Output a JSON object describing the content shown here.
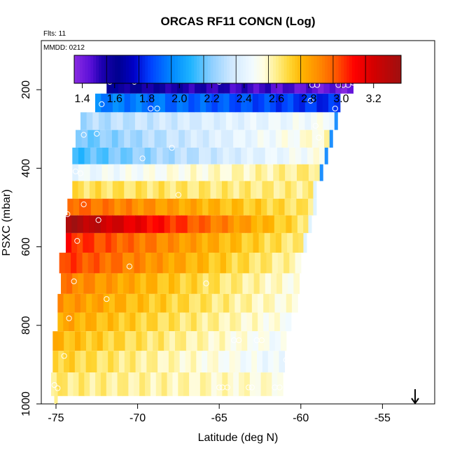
{
  "chart_data": {
    "type": "heatmap",
    "title": "ORCAS RF11 CONCN (Log)",
    "subtitle_flights": "Flts: 11",
    "subtitle_date": "MMDD: 0212",
    "xlabel": "Latitude (deg N)",
    "ylabel": "PSXC (mbar)",
    "xlim": [
      -75.9,
      -51.8
    ],
    "ylim": [
      1000,
      75
    ],
    "x_ticks": [
      -75,
      -70,
      -65,
      -60,
      -55
    ],
    "x_tick_labels": [
      "-75",
      "-70",
      "-65",
      "-60",
      "-55"
    ],
    "y_ticks": [
      200,
      400,
      600,
      800,
      1000
    ],
    "y_tick_labels": [
      "200",
      "400",
      "600",
      "800",
      "1000"
    ],
    "colorbar": {
      "range": [
        1.35,
        3.37
      ],
      "ticks": [
        1.4,
        1.6,
        1.8,
        2.0,
        2.2,
        2.4,
        2.6,
        2.8,
        3.0,
        3.2
      ],
      "tick_labels": [
        "1.4",
        "1.6",
        "1.8",
        "2.0",
        "2.2",
        "2.4",
        "2.6",
        "2.8",
        "3.0",
        "3.2"
      ],
      "divisions": [
        1.55,
        1.75,
        1.95,
        2.15,
        2.35,
        2.55,
        2.75,
        2.95,
        3.15
      ],
      "stops": [
        {
          "v": 1.35,
          "c": "#8a2be2"
        },
        {
          "v": 1.45,
          "c": "#5a10d8"
        },
        {
          "v": 1.52,
          "c": "#1d00b0"
        },
        {
          "v": 1.62,
          "c": "#000090"
        },
        {
          "v": 1.72,
          "c": "#0000c8"
        },
        {
          "v": 1.82,
          "c": "#0040ff"
        },
        {
          "v": 1.95,
          "c": "#0088ff"
        },
        {
          "v": 2.07,
          "c": "#1eb4ff"
        },
        {
          "v": 2.2,
          "c": "#8fcfff"
        },
        {
          "v": 2.32,
          "c": "#cfe8ff"
        },
        {
          "v": 2.45,
          "c": "#f2fbff"
        },
        {
          "v": 2.52,
          "c": "#fffde0"
        },
        {
          "v": 2.6,
          "c": "#ffef8c"
        },
        {
          "v": 2.68,
          "c": "#ffd633"
        },
        {
          "v": 2.76,
          "c": "#ffb300"
        },
        {
          "v": 2.86,
          "c": "#ff8c00"
        },
        {
          "v": 2.97,
          "c": "#ff5500"
        },
        {
          "v": 3.08,
          "c": "#ff0000"
        },
        {
          "v": 3.2,
          "c": "#d40000"
        },
        {
          "v": 3.37,
          "c": "#9e1010"
        }
      ]
    },
    "rows": [
      {
        "p": 185,
        "x0": -71.9,
        "x1": -56.8,
        "v0": 1.6,
        "v1": 1.4
      },
      {
        "p": 235,
        "x0": -72.6,
        "x1": -57.6,
        "v0": 1.95,
        "v1": 1.78
      },
      {
        "p": 280,
        "x0": -73.5,
        "x1": -57.9,
        "v0": 2.25,
        "v1": 2.48
      },
      {
        "p": 325,
        "x0": -73.8,
        "x1": -58.2,
        "v0": 2.15,
        "v1": 2.55
      },
      {
        "p": 370,
        "x0": -74.0,
        "x1": -58.5,
        "v0": 2.1,
        "v1": 2.5
      },
      {
        "p": 410,
        "x0": -74.0,
        "x1": -58.8,
        "v0": 2.42,
        "v1": 2.62
      },
      {
        "p": 455,
        "x0": -74.0,
        "x1": -59.2,
        "v0": 2.65,
        "v1": 2.6
      },
      {
        "p": 500,
        "x0": -74.3,
        "x1": -59.2,
        "v0": 2.95,
        "v1": 2.62
      },
      {
        "p": 540,
        "x0": -74.4,
        "x1": -59.5,
        "v0": 3.35,
        "v1": 2.62
      },
      {
        "p": 590,
        "x0": -74.4,
        "x1": -59.8,
        "v0": 3.05,
        "v1": 2.6
      },
      {
        "p": 640,
        "x0": -74.8,
        "x1": -60.0,
        "v0": 3.02,
        "v1": 2.55
      },
      {
        "p": 695,
        "x0": -74.7,
        "x1": -60.1,
        "v0": 2.9,
        "v1": 2.5
      },
      {
        "p": 745,
        "x0": -74.9,
        "x1": -60.2,
        "v0": 2.85,
        "v1": 2.5
      },
      {
        "p": 790,
        "x0": -74.9,
        "x1": -60.6,
        "v0": 2.8,
        "v1": 2.48
      },
      {
        "p": 840,
        "x0": -75.2,
        "x1": -60.9,
        "v0": 2.76,
        "v1": 2.45
      },
      {
        "p": 890,
        "x0": -75.2,
        "x1": -61.0,
        "v0": 2.7,
        "v1": 2.42
      },
      {
        "p": 950,
        "x0": -75.3,
        "x1": -61.1,
        "v0": 2.62,
        "v1": 2.52
      }
    ],
    "points": [
      [
        -71.7,
        180
      ],
      [
        -70.2,
        180
      ],
      [
        -65.0,
        180
      ],
      [
        -59.3,
        188
      ],
      [
        -59.0,
        188
      ],
      [
        -57.7,
        188
      ],
      [
        -57.4,
        188
      ],
      [
        -57.1,
        188
      ],
      [
        -56.8,
        182
      ],
      [
        -72.2,
        237
      ],
      [
        -69.2,
        248
      ],
      [
        -68.8,
        248
      ],
      [
        -59.4,
        228
      ],
      [
        -57.9,
        248
      ],
      [
        -73.3,
        315
      ],
      [
        -72.5,
        312
      ],
      [
        -67.9,
        348
      ],
      [
        -59.1,
        292
      ],
      [
        -58.9,
        322
      ],
      [
        -69.7,
        375
      ],
      [
        -73.8,
        408
      ],
      [
        -73.5,
        413
      ],
      [
        -67.5,
        468
      ],
      [
        -73.3,
        492
      ],
      [
        -74.3,
        517
      ],
      [
        -72.4,
        532
      ],
      [
        -73.7,
        585
      ],
      [
        -70.5,
        650
      ],
      [
        -73.9,
        688
      ],
      [
        -65.8,
        693
      ],
      [
        -71.9,
        733
      ],
      [
        -74.2,
        782
      ],
      [
        -64.1,
        838
      ],
      [
        -63.8,
        838
      ],
      [
        -62.7,
        838
      ],
      [
        -62.4,
        838
      ],
      [
        -74.5,
        878
      ],
      [
        -60.9,
        888
      ],
      [
        -75.1,
        952
      ],
      [
        -74.9,
        960
      ],
      [
        -65.0,
        958
      ],
      [
        -64.8,
        958
      ],
      [
        -64.5,
        958
      ],
      [
        -63.2,
        958
      ],
      [
        -63.0,
        958
      ],
      [
        -61.6,
        958
      ],
      [
        -61.3,
        958
      ]
    ],
    "extra_tail": {
      "x": -75.0,
      "p0": 960,
      "p1": 1000,
      "v": 2.6
    },
    "arrow_at_lat": -53.0
  }
}
